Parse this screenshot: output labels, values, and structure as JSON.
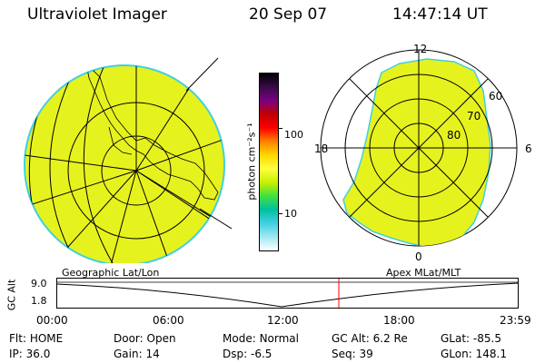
{
  "header": {
    "instrument": "Ultraviolet Imager",
    "date": "20 Sep 07",
    "time": "14:47:14 UT"
  },
  "left_panel": {
    "label": "Geographic Lat/Lon"
  },
  "right_panel": {
    "label": "Apex MLat/MLT",
    "mlt_labels": {
      "top": "12",
      "left": "18",
      "right": "6",
      "bottom": "0"
    },
    "lat_labels": [
      "60",
      "70",
      "80"
    ]
  },
  "colorbar": {
    "title": "photon cm⁻²s⁻¹",
    "ticks": [
      "100",
      "10"
    ],
    "colors": [
      "#000000",
      "#3a0a4a",
      "#7a0080",
      "#c00000",
      "#ff0000",
      "#ff8000",
      "#ffd800",
      "#ffff40",
      "#c8f000",
      "#40e040",
      "#00c0a0",
      "#40d0e0",
      "#a0e8f0",
      "#ffffff"
    ]
  },
  "timeline": {
    "ylabel": "GC Alt",
    "y_ticks": [
      "9.0",
      "1.8"
    ],
    "x_ticks": [
      "00:00",
      "06:00",
      "12:00",
      "18:00",
      "23:59"
    ],
    "current_time_marker_color": "#ff0000"
  },
  "info": {
    "row1": [
      {
        "label": "Flt:",
        "value": "HOME"
      },
      {
        "label": "Door:",
        "value": "Open"
      },
      {
        "label": "Mode:",
        "value": "Normal"
      },
      {
        "label": "GC Alt:",
        "value": "6.2 Re"
      },
      {
        "label": "GLat:",
        "value": "-85.5"
      }
    ],
    "row2": [
      {
        "label": "IP:",
        "value": "36.0"
      },
      {
        "label": "Gain:",
        "value": "14"
      },
      {
        "label": "Dsp:",
        "value": "-6.5"
      },
      {
        "label": "Seq:",
        "value": "39"
      },
      {
        "label": "GLon:",
        "value": "148.1"
      }
    ]
  },
  "colors": {
    "image_fill": "#e6f21e",
    "image_edge": "#40d0e0"
  }
}
